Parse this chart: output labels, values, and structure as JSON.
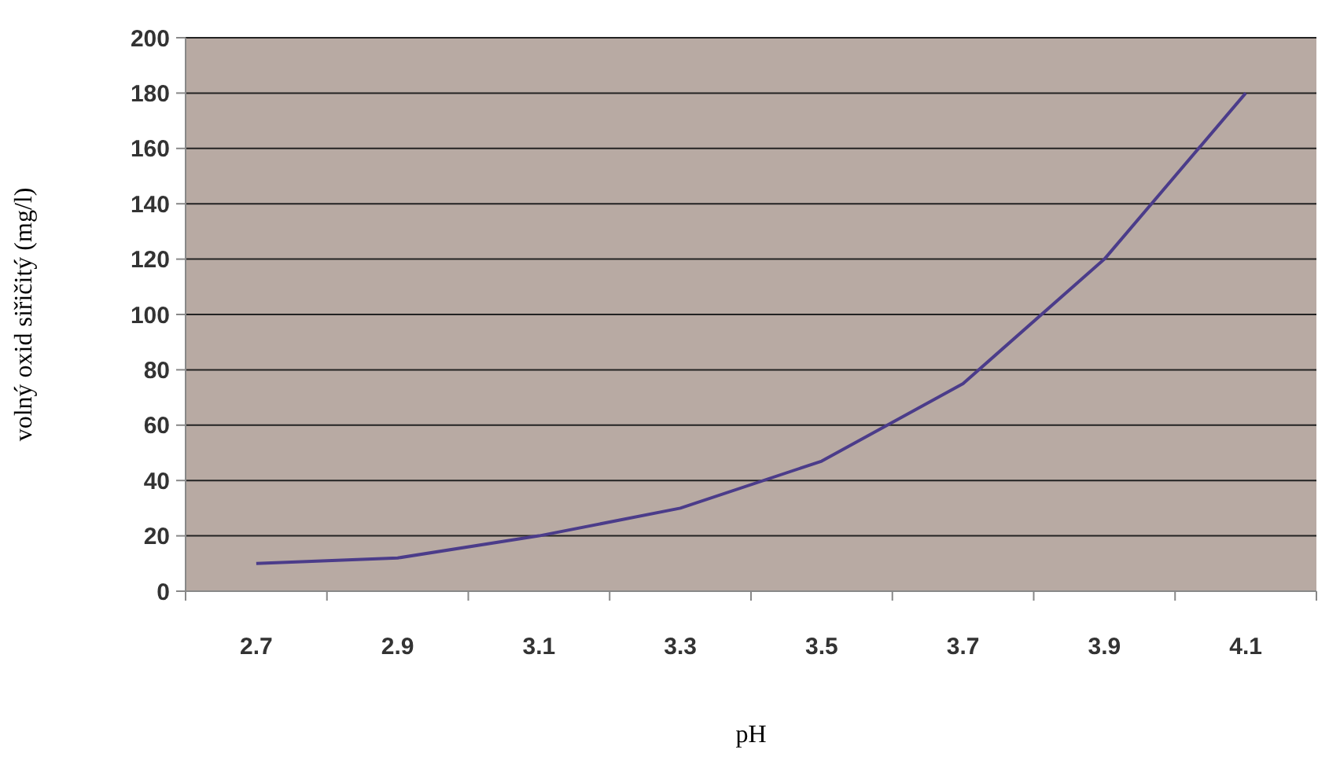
{
  "chart_data": {
    "type": "line",
    "xlabel": "pH",
    "ylabel": "volný oxid siřičitý (mg/l)",
    "categories": [
      "2.7",
      "2.9",
      "3.1",
      "3.3",
      "3.5",
      "3.7",
      "3.9",
      "4.1"
    ],
    "series": [
      {
        "color": "#4b3c8a",
        "values": [
          10,
          12,
          20,
          30,
          47,
          75,
          120,
          180
        ]
      }
    ],
    "ylim": [
      0,
      200
    ],
    "yticks": [
      0,
      20,
      40,
      60,
      80,
      100,
      120,
      140,
      160,
      180,
      200
    ],
    "grid": "y",
    "marker": "none",
    "line_style": "solid"
  }
}
